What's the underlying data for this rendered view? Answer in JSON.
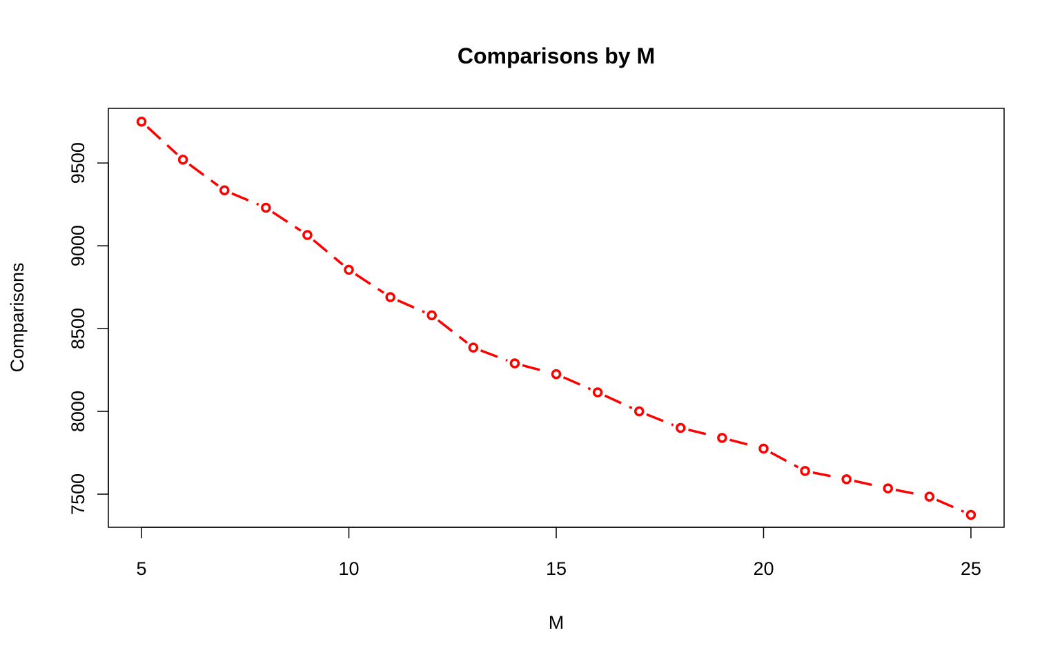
{
  "chart_data": {
    "type": "line",
    "title": "Comparisons by M",
    "xlabel": "M",
    "ylabel": "Comparisons",
    "xlim": [
      4.2,
      25.8
    ],
    "ylim": [
      7300,
      9830
    ],
    "xticks": [
      5,
      10,
      15,
      20,
      25
    ],
    "yticks": [
      7500,
      8000,
      8500,
      9000,
      9500
    ],
    "xtick_labels": [
      "5",
      "10",
      "15",
      "20",
      "25"
    ],
    "ytick_labels": [
      "7500",
      "8000",
      "8500",
      "9000",
      "9500"
    ],
    "grid": false,
    "legend": "none",
    "series": [
      {
        "color": "#ff0000",
        "line_style": "dashed",
        "marker": "open-circle",
        "x": [
          5,
          6,
          7,
          8,
          9,
          10,
          11,
          12,
          13,
          14,
          15,
          16,
          17,
          18,
          19,
          20,
          21,
          22,
          23,
          24,
          25
        ],
        "values": [
          9750,
          9520,
          9335,
          9230,
          9065,
          8855,
          8690,
          8580,
          8385,
          8290,
          8225,
          8115,
          8000,
          7900,
          7840,
          7775,
          7640,
          7590,
          7535,
          7485,
          7375
        ]
      }
    ]
  }
}
